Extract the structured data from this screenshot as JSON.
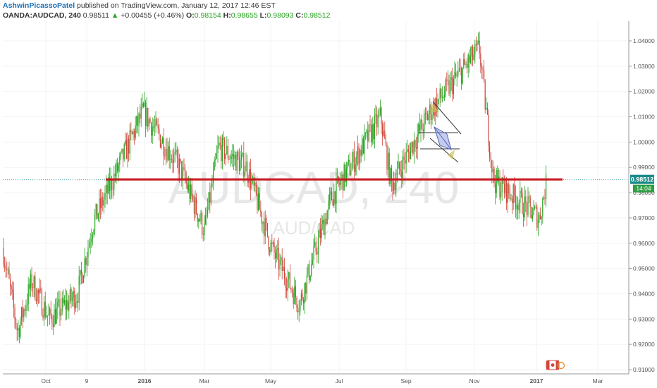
{
  "header": {
    "author": "AshwinPicassoPatel",
    "published": " published on TradingView.com, January 12, 2017 12:46 EST",
    "symbol": "OANDA:AUDCAD, 240",
    "last": "0.98511",
    "arrow": "▲",
    "change": "+0.00455 (+0.46%)",
    "o_label": "O:",
    "o_value": "0.98154",
    "h_label": "H:",
    "h_value": "0.98655",
    "l_label": "L:",
    "l_value": "0.98093",
    "c_label": "C:",
    "c_value": "0.98512"
  },
  "watermark": {
    "main": "AUDCAD, 240",
    "sub": "AUD/CAD"
  },
  "price_tag": {
    "value": "0.98512",
    "countdown": "14:04"
  },
  "colors": {
    "up": "#26a31f",
    "down": "#d0473c",
    "support": "#c8161d",
    "price_tag": "#1b8a8a",
    "countdown_tag": "#2f9e44",
    "watermark": "#e7e7e7"
  },
  "chart_data": {
    "type": "candlestick",
    "x_ticks": [
      "Oct",
      "9",
      "2016",
      "Mar",
      "May",
      "Jul",
      "Sep",
      "Nov",
      "2017",
      "Mar"
    ],
    "y_ticks": [
      "1.04000",
      "1.03000",
      "1.02000",
      "1.01000",
      "1.00000",
      "0.99000",
      "0.98000",
      "0.97000",
      "0.96000",
      "0.95000",
      "0.94000",
      "0.93000",
      "0.92000",
      "0.91000"
    ],
    "ylim": [
      0.908,
      1.046
    ],
    "support_level": 0.9852,
    "price_path": [
      {
        "x": "Sep 2015",
        "y": 0.958
      },
      {
        "x": "Oct 2015",
        "y": 0.925
      },
      {
        "x": "Oct 2015",
        "y": 0.945
      },
      {
        "x": "Nov 2015",
        "y": 0.93
      },
      {
        "x": "Dec 2015",
        "y": 0.94
      },
      {
        "x": "Dec 2015",
        "y": 0.968
      },
      {
        "x": "Jan 2016",
        "y": 0.985
      },
      {
        "x": "Jan 2016",
        "y": 1.012
      },
      {
        "x": "Feb 2016",
        "y": 0.99
      },
      {
        "x": "Mar 2016",
        "y": 0.965
      },
      {
        "x": "Mar 2016",
        "y": 0.998
      },
      {
        "x": "Apr 2016",
        "y": 0.99
      },
      {
        "x": "May 2016",
        "y": 0.958
      },
      {
        "x": "Jun 2016",
        "y": 0.936
      },
      {
        "x": "Jul 2016",
        "y": 0.978
      },
      {
        "x": "Aug 2016",
        "y": 1.01
      },
      {
        "x": "Aug 2016",
        "y": 0.983
      },
      {
        "x": "Oct 2016",
        "y": 1.012
      },
      {
        "x": "Nov 2016",
        "y": 1.037
      },
      {
        "x": "Dec 2016",
        "y": 0.985
      },
      {
        "x": "Jan 2017",
        "y": 0.97
      },
      {
        "x": "Jan 2017",
        "y": 0.9851
      }
    ]
  }
}
